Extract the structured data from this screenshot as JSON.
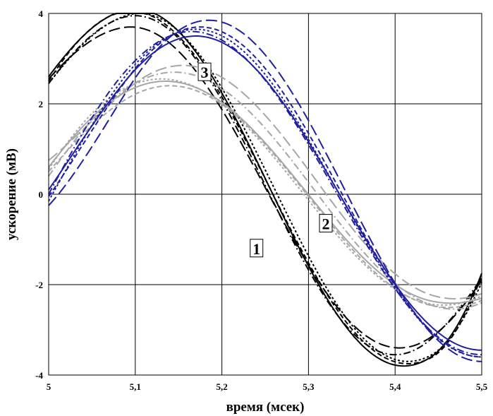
{
  "chart_data": {
    "type": "line",
    "xlabel": "время (мсек)",
    "ylabel": "ускорение (мВ)",
    "xlim": [
      5.0,
      5.5
    ],
    "ylim": [
      -4,
      4
    ],
    "x_ticks": [
      5.0,
      5.1,
      5.2,
      5.3,
      5.4,
      5.5
    ],
    "x_tick_labels": [
      "5",
      "5,1",
      "5,2",
      "5,3",
      "5,4",
      "5,5"
    ],
    "y_ticks": [
      4,
      2,
      0,
      -2,
      -4
    ],
    "y_tick_labels": [
      "4",
      "2",
      "0",
      "-2",
      "-4"
    ],
    "grid": true,
    "annotations": [
      {
        "label": "1",
        "x": 5.24,
        "y": -1.2
      },
      {
        "label": "2",
        "x": 5.32,
        "y": -0.65
      },
      {
        "label": "3",
        "x": 5.18,
        "y": 2.7
      }
    ],
    "groups": [
      {
        "label": "1",
        "color": "#000000",
        "series": [
          {
            "style": "solid",
            "peak_x": 5.1,
            "peak_y": 4.1,
            "trough_x": 5.41,
            "trough_y": -3.8,
            "start_y": 2.6,
            "end_y": -1.75
          },
          {
            "style": "dash",
            "peak_x": 5.095,
            "peak_y": 4.05,
            "trough_x": 5.415,
            "trough_y": -3.75,
            "start_y": 2.5,
            "end_y": -1.8
          },
          {
            "style": "dashdot",
            "peak_x": 5.1,
            "peak_y": 3.95,
            "trough_x": 5.4,
            "trough_y": -3.55,
            "start_y": 2.45,
            "end_y": -1.85
          },
          {
            "style": "longdash",
            "peak_x": 5.095,
            "peak_y": 3.7,
            "trough_x": 5.405,
            "trough_y": -3.4,
            "start_y": 2.55,
            "end_y": -1.9
          },
          {
            "style": "dot",
            "peak_x": 5.105,
            "peak_y": 4.0,
            "trough_x": 5.415,
            "trough_y": -3.7,
            "start_y": 2.45,
            "end_y": -1.95
          }
        ]
      },
      {
        "label": "2",
        "color": "#a6a6a6",
        "series": [
          {
            "style": "solid",
            "peak_x": 5.135,
            "peak_y": 2.5,
            "trough_x": 5.46,
            "trough_y": -2.4,
            "start_y": 0.6,
            "end_y": -2.3
          },
          {
            "style": "dash",
            "peak_x": 5.14,
            "peak_y": 2.4,
            "trough_x": 5.46,
            "trough_y": -2.5,
            "start_y": 0.5,
            "end_y": -2.35
          },
          {
            "style": "dashdot",
            "peak_x": 5.145,
            "peak_y": 2.7,
            "trough_x": 5.47,
            "trough_y": -2.55,
            "start_y": 0.4,
            "end_y": -2.4
          },
          {
            "style": "longdash",
            "peak_x": 5.155,
            "peak_y": 2.85,
            "trough_x": 5.465,
            "trough_y": -2.3,
            "start_y": 0.75,
            "end_y": -2.2
          },
          {
            "style": "dot",
            "peak_x": 5.13,
            "peak_y": 2.55,
            "trough_x": 5.455,
            "trough_y": -2.45,
            "start_y": 0.55,
            "end_y": -2.25
          }
        ]
      },
      {
        "label": "3",
        "color": "#1f1fa0",
        "series": [
          {
            "style": "solid",
            "peak_x": 5.17,
            "peak_y": 3.5,
            "trough_x": 5.5,
            "trough_y": -3.45,
            "start_y": 0.1,
            "end_y": -3.45
          },
          {
            "style": "dash",
            "peak_x": 5.175,
            "peak_y": 3.7,
            "trough_x": 5.5,
            "trough_y": -3.6,
            "start_y": -0.05,
            "end_y": -3.6
          },
          {
            "style": "dashdot",
            "peak_x": 5.165,
            "peak_y": 3.6,
            "trough_x": 5.5,
            "trough_y": -3.55,
            "start_y": 0.0,
            "end_y": -3.55
          },
          {
            "style": "longdash",
            "peak_x": 5.185,
            "peak_y": 3.85,
            "trough_x": 5.5,
            "trough_y": -3.7,
            "start_y": -0.25,
            "end_y": -3.7
          },
          {
            "style": "dot",
            "peak_x": 5.17,
            "peak_y": 3.65,
            "trough_x": 5.5,
            "trough_y": -3.6,
            "start_y": -0.15,
            "end_y": -3.6
          }
        ]
      }
    ]
  }
}
